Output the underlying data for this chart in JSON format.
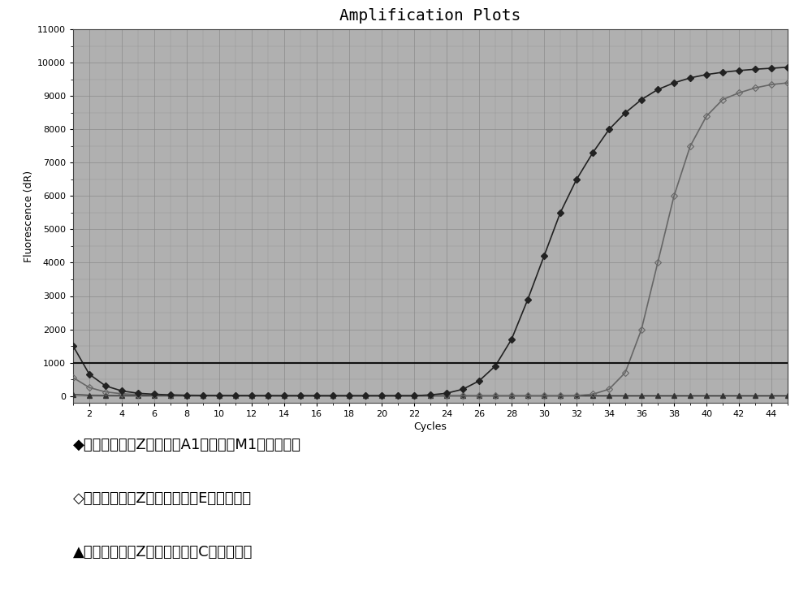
{
  "title": "Amplification Plots",
  "xlabel": "Cycles",
  "ylabel": "Fluorescence (dR)",
  "xlim": [
    1,
    45
  ],
  "ylim": [
    -200,
    11000
  ],
  "yticks": [
    0,
    1000,
    2000,
    3000,
    4000,
    5000,
    6000,
    7000,
    8000,
    9000,
    10000,
    11000
  ],
  "xticks": [
    2,
    4,
    6,
    8,
    10,
    12,
    14,
    16,
    18,
    20,
    22,
    24,
    26,
    28,
    30,
    32,
    34,
    36,
    38,
    40,
    42,
    44
  ],
  "threshold": 1000,
  "bg_color": "#b0b0b0",
  "grid_color": "#888888",
  "line1_color": "#222222",
  "line2_color": "#666666",
  "line3_color": "#333333",
  "legend": [
    "◆采用反应体系Z检测样本A1的转化液M1的扩增曲线",
    "◇采用反应体系Z检测阳性对照E的扩增曲线",
    "▲采用反应体系Z检测阴性对照C的扩增曲线"
  ],
  "cycles": [
    1,
    2,
    3,
    4,
    5,
    6,
    7,
    8,
    9,
    10,
    11,
    12,
    13,
    14,
    15,
    16,
    17,
    18,
    19,
    20,
    21,
    22,
    23,
    24,
    25,
    26,
    27,
    28,
    29,
    30,
    31,
    32,
    33,
    34,
    35,
    36,
    37,
    38,
    39,
    40,
    41,
    42,
    43,
    44,
    45
  ],
  "series1": [
    1500,
    650,
    300,
    150,
    80,
    50,
    30,
    20,
    15,
    12,
    10,
    8,
    7,
    6,
    6,
    5,
    5,
    5,
    5,
    5,
    5,
    5,
    30,
    80,
    200,
    450,
    900,
    1700,
    2900,
    4200,
    5500,
    6500,
    7300,
    8000,
    8500,
    8900,
    9200,
    9400,
    9550,
    9650,
    9720,
    9770,
    9810,
    9840,
    9870
  ],
  "series2": [
    550,
    250,
    120,
    65,
    40,
    25,
    15,
    10,
    8,
    6,
    5,
    4,
    4,
    4,
    4,
    4,
    4,
    4,
    4,
    4,
    4,
    4,
    4,
    4,
    4,
    4,
    4,
    4,
    4,
    4,
    4,
    10,
    50,
    200,
    700,
    2000,
    4000,
    6000,
    7500,
    8400,
    8900,
    9100,
    9250,
    9350,
    9400
  ],
  "series3": [
    40,
    20,
    12,
    8,
    6,
    5,
    4,
    3,
    3,
    3,
    3,
    3,
    3,
    3,
    3,
    3,
    3,
    3,
    3,
    3,
    3,
    3,
    3,
    3,
    3,
    3,
    3,
    3,
    3,
    3,
    3,
    3,
    3,
    3,
    3,
    3,
    3,
    3,
    3,
    3,
    3,
    3,
    3,
    3,
    3
  ]
}
